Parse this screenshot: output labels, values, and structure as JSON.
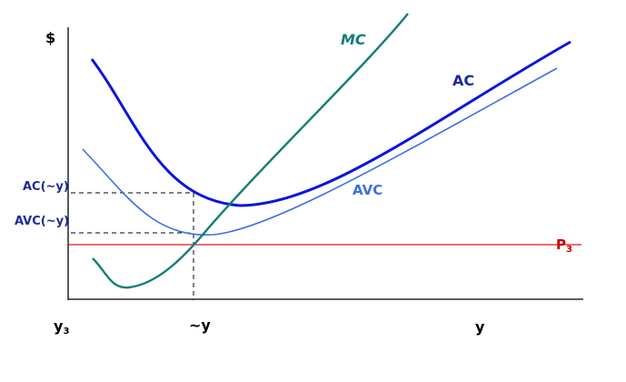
{
  "labels": {
    "y_axis": "$",
    "x_axis": "y",
    "origin": "y",
    "origin_sub": "3",
    "y_tilde": "~y",
    "ac_at_ytilde": "AC(~y)",
    "avc_at_ytilde": "AVC(~y)",
    "price": "P",
    "price_sub": "3"
  },
  "curves": [
    {
      "name": "MC",
      "label": "MC",
      "italic": true,
      "color": "#0e7f76"
    },
    {
      "name": "AC",
      "label": "AC",
      "italic": false,
      "color": "#0b16d9"
    },
    {
      "name": "AVC",
      "label": "AVC",
      "italic": false,
      "color": "#3f6fe0"
    }
  ],
  "price_line_color": "#e0181a",
  "label_colors": {
    "axis": "#000000",
    "cost": "#1c2a9c",
    "price": "#c00000"
  }
}
